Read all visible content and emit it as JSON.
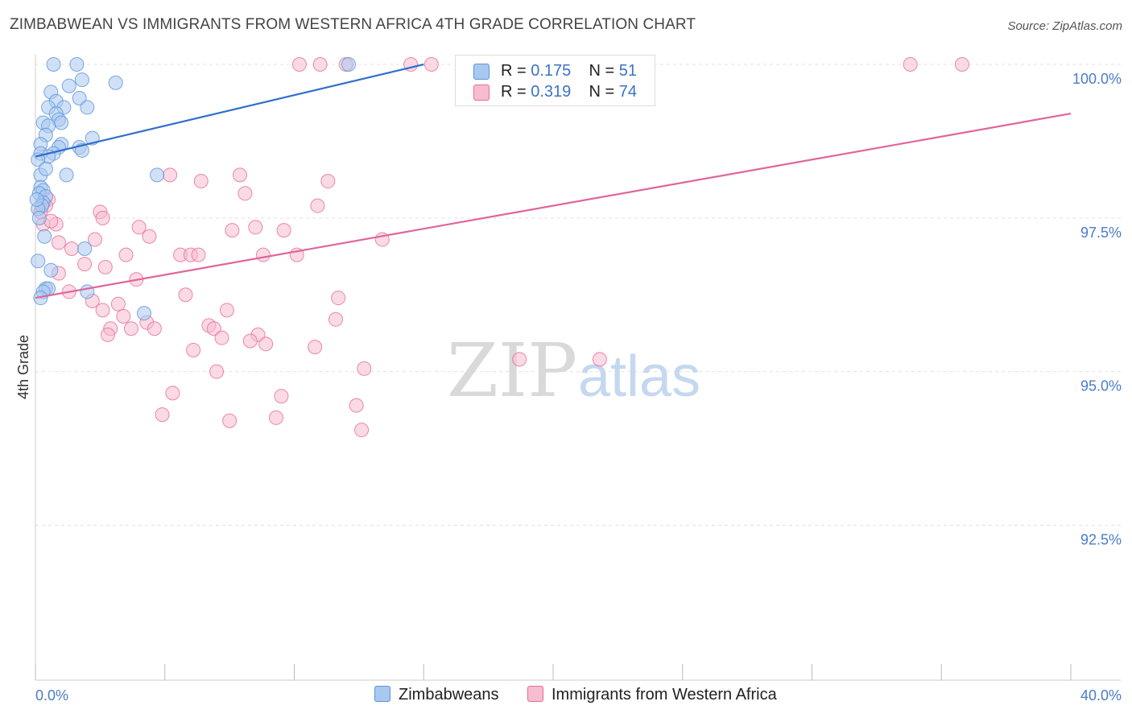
{
  "title": "ZIMBABWEAN VS IMMIGRANTS FROM WESTERN AFRICA 4TH GRADE CORRELATION CHART",
  "source": "Source: ZipAtlas.com",
  "watermark": {
    "zip": "ZIP",
    "atlas": "atlas"
  },
  "legend": {
    "rows": [
      {
        "r_label": "R =",
        "r_value": "0.175",
        "n_label": "N =",
        "n_value": "51",
        "color": "#a9c8f0"
      },
      {
        "r_label": "R =",
        "r_value": "0.319",
        "n_label": "N =",
        "n_value": "74",
        "color": "#f6bcd0"
      }
    ]
  },
  "bottom_legend": {
    "series1": "Zimbabweans",
    "series2": "Immigrants from Western Africa"
  },
  "chart_data": {
    "type": "scatter",
    "title": "ZIMBABWEAN VS IMMIGRANTS FROM WESTERN AFRICA 4TH GRADE CORRELATION CHART",
    "xlabel": "",
    "ylabel": "4th Grade",
    "xlim": [
      0,
      40
    ],
    "ylim": [
      90.5,
      100.3
    ],
    "x_ticks": [
      "0.0%",
      "40.0%"
    ],
    "y_ticks": [
      {
        "value": 100.0,
        "label": "100.0%"
      },
      {
        "value": 97.5,
        "label": "97.5%"
      },
      {
        "value": 95.0,
        "label": "95.0%"
      },
      {
        "value": 92.5,
        "label": "92.5%"
      }
    ],
    "grid": true,
    "series": [
      {
        "name": "Zimbabweans",
        "color": "#5b93d9",
        "fill": "#a9c8f0",
        "trend": {
          "x": [
            0,
            15.0
          ],
          "y": [
            98.5,
            100.0
          ]
        },
        "points": [
          [
            0.7,
            100.0
          ],
          [
            1.6,
            100.0
          ],
          [
            12.1,
            100.0
          ],
          [
            1.8,
            99.75
          ],
          [
            3.1,
            99.7
          ],
          [
            1.3,
            99.65
          ],
          [
            0.6,
            99.55
          ],
          [
            1.7,
            99.45
          ],
          [
            0.8,
            99.4
          ],
          [
            1.1,
            99.3
          ],
          [
            0.5,
            99.3
          ],
          [
            2.0,
            99.3
          ],
          [
            0.8,
            99.2
          ],
          [
            0.9,
            99.1
          ],
          [
            1.0,
            99.05
          ],
          [
            0.3,
            99.05
          ],
          [
            0.5,
            99.0
          ],
          [
            0.4,
            98.85
          ],
          [
            2.2,
            98.8
          ],
          [
            1.0,
            98.7
          ],
          [
            0.2,
            98.7
          ],
          [
            1.7,
            98.65
          ],
          [
            0.9,
            98.65
          ],
          [
            1.8,
            98.6
          ],
          [
            0.7,
            98.55
          ],
          [
            0.2,
            98.55
          ],
          [
            0.5,
            98.5
          ],
          [
            0.1,
            98.45
          ],
          [
            0.2,
            98.2
          ],
          [
            1.2,
            98.2
          ],
          [
            4.7,
            98.2
          ],
          [
            0.2,
            98.0
          ],
          [
            0.3,
            97.95
          ],
          [
            0.15,
            97.9
          ],
          [
            0.4,
            97.85
          ],
          [
            0.3,
            97.75
          ],
          [
            0.25,
            97.7
          ],
          [
            0.1,
            97.65
          ],
          [
            0.35,
            97.2
          ],
          [
            1.9,
            97.0
          ],
          [
            0.1,
            96.8
          ],
          [
            0.6,
            96.65
          ],
          [
            0.4,
            96.35
          ],
          [
            0.5,
            96.35
          ],
          [
            2.0,
            96.3
          ],
          [
            0.3,
            96.3
          ],
          [
            4.2,
            95.95
          ],
          [
            0.05,
            97.8
          ],
          [
            0.15,
            97.5
          ],
          [
            0.2,
            96.2
          ],
          [
            0.4,
            98.3
          ]
        ]
      },
      {
        "name": "Immigrants from Western Africa",
        "color": "#e86b98",
        "fill": "#f6bcd0",
        "trend": {
          "x": [
            0,
            40
          ],
          "y": [
            96.2,
            99.2
          ]
        },
        "points": [
          [
            10.2,
            100.0
          ],
          [
            11.0,
            100.0
          ],
          [
            12.0,
            100.0
          ],
          [
            14.5,
            100.0
          ],
          [
            15.3,
            100.0
          ],
          [
            16.6,
            100.0
          ],
          [
            33.8,
            100.0
          ],
          [
            35.8,
            100.0
          ],
          [
            5.2,
            98.2
          ],
          [
            7.9,
            98.2
          ],
          [
            6.4,
            98.1
          ],
          [
            11.3,
            98.1
          ],
          [
            8.1,
            97.9
          ],
          [
            0.5,
            97.8
          ],
          [
            0.4,
            97.7
          ],
          [
            10.9,
            97.7
          ],
          [
            2.5,
            97.6
          ],
          [
            2.6,
            97.5
          ],
          [
            0.3,
            97.4
          ],
          [
            0.8,
            97.4
          ],
          [
            4.0,
            97.35
          ],
          [
            8.5,
            97.35
          ],
          [
            7.6,
            97.3
          ],
          [
            9.6,
            97.3
          ],
          [
            4.4,
            97.2
          ],
          [
            2.3,
            97.15
          ],
          [
            13.4,
            97.15
          ],
          [
            0.9,
            97.1
          ],
          [
            1.4,
            97.0
          ],
          [
            3.5,
            96.9
          ],
          [
            5.6,
            96.9
          ],
          [
            6.0,
            96.9
          ],
          [
            6.3,
            96.9
          ],
          [
            8.8,
            96.9
          ],
          [
            10.1,
            96.9
          ],
          [
            1.9,
            96.75
          ],
          [
            2.7,
            96.7
          ],
          [
            0.9,
            96.6
          ],
          [
            3.9,
            96.5
          ],
          [
            1.3,
            96.3
          ],
          [
            5.8,
            96.25
          ],
          [
            11.7,
            96.2
          ],
          [
            2.2,
            96.15
          ],
          [
            3.2,
            96.1
          ],
          [
            2.6,
            96.0
          ],
          [
            7.4,
            96.0
          ],
          [
            3.4,
            95.9
          ],
          [
            11.6,
            95.85
          ],
          [
            4.3,
            95.8
          ],
          [
            6.7,
            95.75
          ],
          [
            6.9,
            95.7
          ],
          [
            2.9,
            95.7
          ],
          [
            3.7,
            95.7
          ],
          [
            4.6,
            95.7
          ],
          [
            8.6,
            95.6
          ],
          [
            2.8,
            95.6
          ],
          [
            7.2,
            95.55
          ],
          [
            8.3,
            95.5
          ],
          [
            8.9,
            95.45
          ],
          [
            10.8,
            95.4
          ],
          [
            6.1,
            95.35
          ],
          [
            18.7,
            95.2
          ],
          [
            21.8,
            95.2
          ],
          [
            12.7,
            95.05
          ],
          [
            7.0,
            95.0
          ],
          [
            5.3,
            94.65
          ],
          [
            9.5,
            94.6
          ],
          [
            12.4,
            94.45
          ],
          [
            4.9,
            94.3
          ],
          [
            9.3,
            94.25
          ],
          [
            7.5,
            94.2
          ],
          [
            12.6,
            94.05
          ],
          [
            0.2,
            97.6
          ],
          [
            0.6,
            97.45
          ]
        ]
      }
    ]
  }
}
